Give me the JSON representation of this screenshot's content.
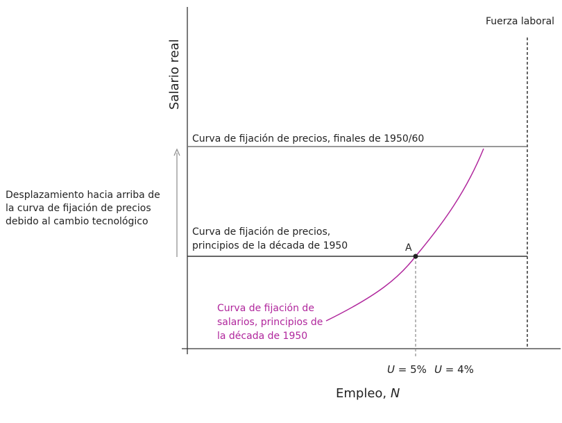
{
  "diagram": {
    "y_axis_label": "Salario real",
    "x_axis_label_prefix": "Empleo, ",
    "x_axis_label_var": "N",
    "labor_force_label": "Fuerza laboral",
    "price_curve_late": "Curva de fijación de precios, finales de 1950/60",
    "price_curve_early_line1": "Curva de fijación de precios,",
    "price_curve_early_line2": "principios de la década de 1950",
    "shift_note_line1": "Desplazamiento hacia arriba de",
    "shift_note_line2": "la curva de fijación de precios",
    "shift_note_line3": "debido al cambio tecnológico",
    "wage_curve_line1": "Curva de fijación de",
    "wage_curve_line2": "salarios, principios de",
    "wage_curve_line3": "la década de 1950",
    "point_label": "A",
    "tick_u5_var": "U",
    "tick_u5_rest": " = 5%",
    "tick_u4_var": "U",
    "tick_u4_rest": " = 4%"
  },
  "colors": {
    "axis": "#333333",
    "price_curve": "#333333",
    "wage_curve": "#b0269c",
    "guide": "#888888"
  }
}
